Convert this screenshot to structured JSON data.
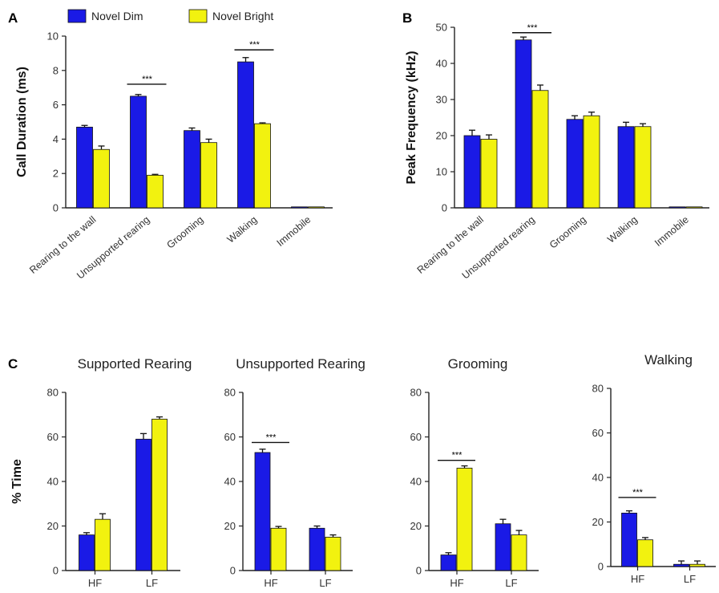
{
  "legend": {
    "items": [
      {
        "label": "Novel Dim",
        "color": "#1a1ae6"
      },
      {
        "label": "Novel Bright",
        "color": "#f2f20f"
      }
    ],
    "position": "top"
  },
  "significance_label": "***",
  "chart_data": [
    {
      "panel": "A",
      "type": "bar",
      "title": "",
      "ylabel": "Call Duration (ms)",
      "ylim": [
        0,
        10
      ],
      "yticks": [
        0,
        2,
        4,
        6,
        8,
        10
      ],
      "categories": [
        "Rearing to the wall",
        "Unsupported rearing",
        "Grooming",
        "Walking",
        "Immobile"
      ],
      "series": [
        {
          "name": "Novel Dim",
          "values": [
            4.7,
            6.5,
            4.5,
            8.5,
            0
          ],
          "errors": [
            0.1,
            0.1,
            0.15,
            0.25,
            0
          ]
        },
        {
          "name": "Novel Bright",
          "values": [
            3.4,
            1.9,
            3.8,
            4.9,
            0
          ],
          "errors": [
            0.2,
            0.05,
            0.2,
            0.05,
            0
          ]
        }
      ],
      "significance": [
        {
          "category_index": 1,
          "y": 7.2
        },
        {
          "category_index": 3,
          "y": 9.2
        }
      ]
    },
    {
      "panel": "B",
      "type": "bar",
      "title": "",
      "ylabel": "Peak Frequency (kHz)",
      "ylim": [
        0,
        50
      ],
      "yticks": [
        0,
        10,
        20,
        30,
        40,
        50
      ],
      "categories": [
        "Rearing to the wall",
        "Unsupported rearing",
        "Grooming",
        "Walking",
        "Immobile"
      ],
      "series": [
        {
          "name": "Novel Dim",
          "values": [
            20,
            46.5,
            24.5,
            22.5,
            0
          ],
          "errors": [
            1.5,
            0.8,
            1.0,
            1.2,
            0
          ]
        },
        {
          "name": "Novel Bright",
          "values": [
            19,
            32.5,
            25.5,
            22.5,
            0
          ],
          "errors": [
            1.2,
            1.5,
            1.0,
            0.8,
            0
          ]
        }
      ],
      "significance": [
        {
          "category_index": 1,
          "y": 48.5
        }
      ]
    },
    {
      "panel": "C",
      "type": "bar",
      "title": "Supported Rearing",
      "ylabel": "% Time",
      "ylim": [
        0,
        80
      ],
      "yticks": [
        0,
        20,
        40,
        60,
        80
      ],
      "categories": [
        "HF",
        "LF"
      ],
      "series": [
        {
          "name": "Novel Dim",
          "values": [
            16,
            59
          ],
          "errors": [
            1.0,
            2.5
          ]
        },
        {
          "name": "Novel Bright",
          "values": [
            23,
            68
          ],
          "errors": [
            2.5,
            1.0
          ]
        }
      ],
      "significance": []
    },
    {
      "panel": "",
      "type": "bar",
      "title": "Unsupported Rearing",
      "ylabel": "",
      "ylim": [
        0,
        80
      ],
      "yticks": [
        0,
        20,
        40,
        60,
        80
      ],
      "categories": [
        "HF",
        "LF"
      ],
      "series": [
        {
          "name": "Novel Dim",
          "values": [
            53,
            19
          ],
          "errors": [
            1.5,
            1.0
          ]
        },
        {
          "name": "Novel Bright",
          "values": [
            19,
            15
          ],
          "errors": [
            0.8,
            1.0
          ]
        }
      ],
      "significance": [
        {
          "category_index": 0,
          "y": 57.5
        }
      ]
    },
    {
      "panel": "",
      "type": "bar",
      "title": "Grooming",
      "ylabel": "",
      "ylim": [
        0,
        80
      ],
      "yticks": [
        0,
        20,
        40,
        60,
        80
      ],
      "categories": [
        "HF",
        "LF"
      ],
      "series": [
        {
          "name": "Novel Dim",
          "values": [
            7,
            21
          ],
          "errors": [
            1.0,
            2.0
          ]
        },
        {
          "name": "Novel Bright",
          "values": [
            46,
            16
          ],
          "errors": [
            1.0,
            2.0
          ]
        }
      ],
      "significance": [
        {
          "category_index": 0,
          "y": 49.5
        }
      ]
    },
    {
      "panel": "",
      "type": "bar",
      "title": "Walking",
      "ylabel": "",
      "ylim": [
        0,
        80
      ],
      "yticks": [
        0,
        20,
        40,
        60,
        80
      ],
      "categories": [
        "HF",
        "LF"
      ],
      "series": [
        {
          "name": "Novel Dim",
          "values": [
            24,
            1
          ],
          "errors": [
            1.0,
            1.5
          ]
        },
        {
          "name": "Novel Bright",
          "values": [
            12,
            1
          ],
          "errors": [
            1.0,
            1.5
          ]
        }
      ],
      "significance": [
        {
          "category_index": 0,
          "y": 31
        }
      ]
    }
  ]
}
